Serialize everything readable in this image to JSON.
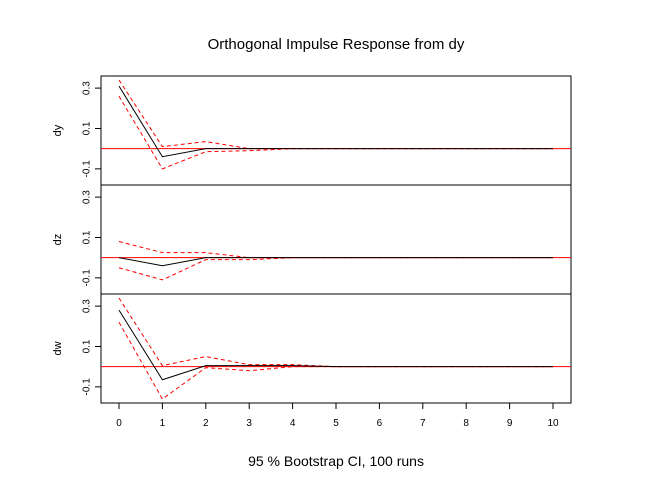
{
  "chart_data": {
    "type": "line",
    "title": "Orthogonal Impulse Response from dy",
    "xlabel": "95 % Bootstrap CI,  100 runs",
    "x": [
      0,
      1,
      2,
      3,
      4,
      5,
      6,
      7,
      8,
      9,
      10
    ],
    "xlim": [
      0,
      10
    ],
    "ylim": [
      -0.18,
      0.36
    ],
    "yticks": [
      -0.1,
      0.1,
      0.3
    ],
    "ytick_labels": [
      "-0.1",
      "0.1",
      "0.3"
    ],
    "xtick_labels": [
      "0",
      "1",
      "2",
      "3",
      "4",
      "5",
      "6",
      "7",
      "8",
      "9",
      "10"
    ],
    "zero_line": true,
    "grid": false,
    "colors": {
      "response": "#000000",
      "ci": "#ff0000",
      "zero": "#ff0000"
    },
    "panels": [
      {
        "label": "dy",
        "response": [
          0.31,
          -0.04,
          0.0,
          0.0,
          0.0,
          0.0,
          0.0,
          0.0,
          0.0,
          0.0,
          0.0
        ],
        "upper": [
          0.34,
          0.01,
          0.035,
          0.0,
          0.0,
          0.0,
          0.0,
          0.0,
          0.0,
          0.0,
          0.0
        ],
        "lower": [
          0.26,
          -0.1,
          -0.015,
          -0.01,
          0.0,
          0.0,
          0.0,
          0.0,
          0.0,
          0.0,
          0.0
        ]
      },
      {
        "label": "dz",
        "response": [
          0.0,
          -0.04,
          0.0,
          0.0,
          0.0,
          0.0,
          0.0,
          0.0,
          0.0,
          0.0,
          0.0
        ],
        "upper": [
          0.08,
          0.025,
          0.025,
          0.0,
          0.0,
          0.0,
          0.0,
          0.0,
          0.0,
          0.0,
          0.0
        ],
        "lower": [
          -0.05,
          -0.11,
          -0.01,
          -0.01,
          0.0,
          0.0,
          0.0,
          0.0,
          0.0,
          0.0,
          0.0
        ]
      },
      {
        "label": "dw",
        "response": [
          0.28,
          -0.065,
          0.005,
          0.005,
          0.005,
          0.0,
          0.0,
          0.0,
          0.0,
          0.0,
          0.0
        ],
        "upper": [
          0.34,
          0.005,
          0.05,
          0.01,
          0.01,
          0.0,
          0.0,
          0.0,
          0.0,
          0.0,
          0.0
        ],
        "lower": [
          0.22,
          -0.16,
          -0.005,
          -0.02,
          0.0,
          0.0,
          0.0,
          0.0,
          0.0,
          0.0,
          0.0
        ]
      }
    ]
  }
}
